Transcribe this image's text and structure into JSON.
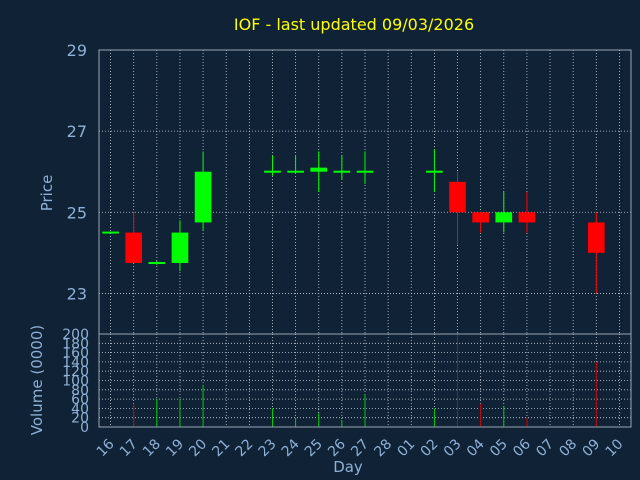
{
  "chart_data": {
    "type": "candlestick",
    "title": "IOF - last updated 09/03/2026",
    "xlabel": "Day",
    "ylabel": "Price",
    "volume_label": "Volume (0000)",
    "x_ticks": [
      "16",
      "17",
      "18",
      "19",
      "20",
      "21",
      "22",
      "23",
      "24",
      "25",
      "26",
      "27",
      "28",
      "01",
      "02",
      "03",
      "04",
      "05",
      "06",
      "07",
      "08",
      "09",
      "10"
    ],
    "price_ticks": [
      23,
      25,
      27,
      29
    ],
    "price_range": [
      22.0,
      29.0
    ],
    "volume_ticks": [
      0,
      20,
      40,
      60,
      80,
      100,
      120,
      140,
      160,
      180,
      200
    ],
    "volume_range": [
      0,
      200
    ],
    "grid": true,
    "colors": {
      "background": "#0f2236",
      "axis": "#9aa6b4",
      "text": "#8fb0d6",
      "title": "#ffff00",
      "up": "#00ff00",
      "down": "#ff0000",
      "volume_up": "#00cc00",
      "volume_down": "#cc0000"
    },
    "candles": [
      {
        "day": "16",
        "open": 24.5,
        "close": 24.5,
        "high": 24.5,
        "low": 24.5,
        "volume": 0
      },
      {
        "day": "17",
        "open": 24.5,
        "close": 23.75,
        "high": 25.0,
        "low": 23.75,
        "volume": 50
      },
      {
        "day": "18",
        "open": 23.75,
        "close": 23.75,
        "high": 23.8,
        "low": 23.7,
        "volume": 60
      },
      {
        "day": "19",
        "open": 23.75,
        "close": 24.5,
        "high": 24.8,
        "low": 23.55,
        "volume": 60
      },
      {
        "day": "20",
        "open": 24.75,
        "close": 26.0,
        "high": 26.5,
        "low": 24.55,
        "volume": 90
      },
      {
        "day": "23",
        "open": 26.0,
        "close": 26.0,
        "high": 26.4,
        "low": 25.9,
        "volume": 40
      },
      {
        "day": "24",
        "open": 26.0,
        "close": 26.0,
        "high": 26.4,
        "low": 25.95,
        "volume": 20
      },
      {
        "day": "25",
        "open": 26.0,
        "close": 26.1,
        "high": 26.5,
        "low": 25.5,
        "volume": 30
      },
      {
        "day": "26",
        "open": 26.0,
        "close": 26.0,
        "high": 26.4,
        "low": 25.8,
        "volume": 15
      },
      {
        "day": "27",
        "open": 26.0,
        "close": 26.0,
        "high": 26.5,
        "low": 25.7,
        "volume": 70
      },
      {
        "day": "02",
        "open": 26.0,
        "close": 26.0,
        "high": 26.55,
        "low": 25.5,
        "volume": 40
      },
      {
        "day": "03",
        "open": 25.75,
        "close": 25.0,
        "high": 26.0,
        "low": 24.2,
        "volume": 200
      },
      {
        "day": "04",
        "open": 25.0,
        "close": 24.75,
        "high": 25.0,
        "low": 24.5,
        "volume": 50
      },
      {
        "day": "05",
        "open": 24.75,
        "close": 25.0,
        "high": 25.5,
        "low": 24.5,
        "volume": 45
      },
      {
        "day": "06",
        "open": 25.0,
        "close": 24.75,
        "high": 25.5,
        "low": 24.5,
        "volume": 20
      },
      {
        "day": "09",
        "open": 24.75,
        "close": 24.0,
        "high": 25.0,
        "low": 23.0,
        "volume": 140
      }
    ]
  }
}
